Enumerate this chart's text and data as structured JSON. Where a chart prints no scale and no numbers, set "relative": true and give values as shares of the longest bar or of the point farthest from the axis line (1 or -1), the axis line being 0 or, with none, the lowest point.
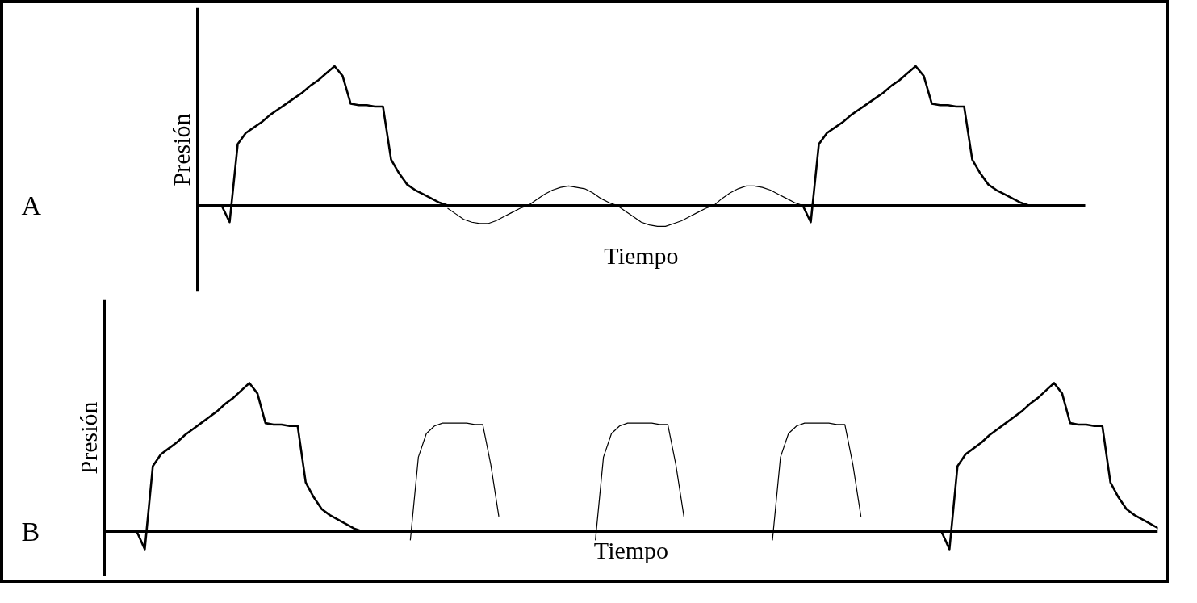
{
  "chart_data": [
    {
      "type": "line",
      "title": "A",
      "xlabel": "Tiempo",
      "ylabel": "Presión",
      "relative": true,
      "categories": [
        null,
        null,
        null,
        null,
        null,
        null,
        null,
        null,
        null,
        null,
        null,
        null,
        null,
        null,
        null,
        null,
        null,
        null,
        null,
        null,
        null,
        null,
        null,
        null,
        null,
        null,
        null,
        null,
        null,
        null,
        null,
        null,
        null,
        null,
        null,
        null,
        null,
        null,
        null,
        null,
        null,
        null,
        null,
        null,
        null,
        null,
        null,
        null,
        null,
        null,
        null,
        null,
        null,
        null,
        null,
        null,
        null,
        null,
        null,
        null,
        null,
        null,
        null,
        null,
        null,
        null,
        null,
        null,
        null,
        null,
        null,
        null,
        null,
        null,
        null,
        null,
        null,
        null,
        null,
        null,
        null,
        null,
        null,
        null,
        null,
        null,
        null,
        null,
        null,
        null,
        null,
        null,
        null,
        null,
        null,
        null,
        null,
        null,
        null,
        null,
        null,
        null,
        null,
        null,
        null,
        null,
        null,
        null,
        null,
        null,
        null
      ],
      "series": [
        {
          "color": "#000000",
          "values": [
            null,
            null,
            null,
            0,
            -0.12,
            0.44,
            0.52,
            0.56,
            0.6,
            0.65,
            0.69,
            0.73,
            0.77,
            0.81,
            0.86,
            0.9,
            0.95,
            1.0,
            0.93,
            0.73,
            0.72,
            0.72,
            0.71,
            0.71,
            0.33,
            0.23,
            0.15,
            0.11,
            0.08,
            0.05,
            0.02,
            0,
            null,
            null,
            null,
            null,
            null,
            null,
            null,
            null,
            null,
            null,
            null,
            null,
            null,
            null,
            null,
            null,
            null,
            null,
            null,
            null,
            null,
            null,
            null,
            null,
            null,
            null,
            null,
            null,
            null,
            null,
            null,
            null,
            null,
            null,
            null,
            null,
            null,
            null,
            null,
            null,
            null,
            null,
            null,
            null,
            null,
            null,
            null,
            null,
            null,
            null,
            null,
            null,
            null,
            null,
            null,
            null,
            null,
            null,
            null,
            null,
            null,
            null,
            null,
            null,
            null,
            null,
            null,
            null,
            null,
            null,
            null,
            null,
            null,
            null,
            null,
            null,
            null,
            null,
            null
          ]
        },
        {
          "color": "#000000",
          "values": [
            null,
            null,
            null,
            null,
            null,
            null,
            null,
            null,
            null,
            null,
            null,
            null,
            null,
            null,
            null,
            null,
            null,
            null,
            null,
            null,
            null,
            null,
            null,
            null,
            null,
            null,
            null,
            null,
            null,
            null,
            null,
            -0.02,
            -0.06,
            -0.1,
            -0.12,
            -0.13,
            -0.13,
            -0.11,
            -0.08,
            -0.05,
            -0.02,
            0,
            0.04,
            0.08,
            0.11,
            0.13,
            0.14,
            0.13,
            0.12,
            0.09,
            0.05,
            0.02,
            0,
            -0.04,
            -0.08,
            -0.12,
            -0.14,
            -0.15,
            -0.15,
            -0.13,
            -0.11,
            -0.08,
            -0.05,
            -0.02,
            0,
            0.05,
            0.09,
            0.12,
            0.14,
            0.14,
            0.13,
            0.11,
            0.08,
            0.05,
            0.02,
            0,
            null,
            null,
            null,
            null,
            null,
            null,
            null,
            null,
            null,
            null,
            null,
            null,
            null,
            null,
            null,
            null,
            null,
            null,
            null,
            null,
            null,
            null,
            null,
            null,
            null,
            null,
            null,
            null,
            null,
            null,
            null,
            null,
            null,
            null,
            null
          ]
        },
        {
          "color": "#000000",
          "values": [
            null,
            null,
            null,
            null,
            null,
            null,
            null,
            null,
            null,
            null,
            null,
            null,
            null,
            null,
            null,
            null,
            null,
            null,
            null,
            null,
            null,
            null,
            null,
            null,
            null,
            null,
            null,
            null,
            null,
            null,
            null,
            null,
            null,
            null,
            null,
            null,
            null,
            null,
            null,
            null,
            null,
            null,
            null,
            null,
            null,
            null,
            null,
            null,
            null,
            null,
            null,
            null,
            null,
            null,
            null,
            null,
            null,
            null,
            null,
            null,
            null,
            null,
            null,
            null,
            null,
            null,
            null,
            null,
            null,
            null,
            null,
            null,
            null,
            null,
            null,
            0,
            -0.12,
            0.44,
            0.52,
            0.56,
            0.6,
            0.65,
            0.69,
            0.73,
            0.77,
            0.81,
            0.86,
            0.9,
            0.95,
            1.0,
            0.93,
            0.73,
            0.72,
            0.72,
            0.71,
            0.71,
            0.33,
            0.23,
            0.15,
            0.11,
            0.08,
            0.05,
            0.02,
            0,
            null,
            null,
            null,
            null,
            null,
            null,
            null
          ]
        }
      ]
    },
    {
      "type": "line",
      "title": "B",
      "xlabel": "Tiempo",
      "ylabel": "Presión",
      "relative": true,
      "categories": [
        null,
        null,
        null,
        null,
        null,
        null,
        null,
        null,
        null,
        null,
        null,
        null,
        null,
        null,
        null,
        null,
        null,
        null,
        null,
        null,
        null,
        null,
        null,
        null,
        null,
        null,
        null,
        null,
        null,
        null,
        null,
        null,
        null,
        null,
        null,
        null,
        null,
        null,
        null,
        null,
        null,
        null,
        null,
        null,
        null,
        null,
        null,
        null,
        null,
        null,
        null,
        null,
        null,
        null,
        null,
        null,
        null,
        null,
        null,
        null,
        null,
        null,
        null,
        null,
        null,
        null,
        null,
        null,
        null,
        null,
        null,
        null,
        null,
        null,
        null,
        null,
        null,
        null,
        null,
        null,
        null,
        null,
        null,
        null,
        null,
        null,
        null,
        null,
        null,
        null,
        null,
        null,
        null,
        null,
        null,
        null,
        null,
        null,
        null,
        null,
        null,
        null,
        null,
        null,
        null,
        null,
        null,
        null,
        null,
        null,
        null,
        null,
        null,
        null,
        null,
        null,
        null,
        null,
        null,
        null,
        null,
        null,
        null,
        null,
        null,
        null,
        null,
        null,
        null,
        null,
        null,
        null,
        null
      ],
      "series": [
        {
          "color": "#000000",
          "values": [
            null,
            null,
            null,
            null,
            0,
            -0.12,
            0.44,
            0.52,
            0.56,
            0.6,
            0.65,
            0.69,
            0.73,
            0.77,
            0.81,
            0.86,
            0.9,
            0.95,
            1.0,
            0.93,
            0.73,
            0.72,
            0.72,
            0.71,
            0.71,
            0.33,
            0.23,
            0.15,
            0.11,
            0.08,
            0.05,
            0.02,
            0,
            null,
            null,
            null,
            null,
            null,
            null,
            null,
            null,
            null,
            null,
            null,
            null,
            null,
            null,
            null,
            null,
            null,
            null,
            null,
            null,
            null,
            null,
            null,
            null,
            null,
            null,
            null,
            null,
            null,
            null,
            null,
            null,
            null,
            null,
            null,
            null,
            null,
            null,
            null,
            null,
            null,
            null,
            null,
            null,
            null,
            null,
            null,
            null,
            null,
            null,
            null,
            null,
            null,
            null,
            null,
            null,
            null,
            null,
            null,
            null,
            null,
            null,
            null,
            null,
            null,
            null,
            null,
            null,
            null,
            null,
            null,
            null,
            null,
            null,
            null,
            null,
            null,
            null,
            null,
            null,
            null,
            null,
            null,
            null,
            null,
            null,
            null,
            null,
            null,
            null,
            null,
            null,
            null,
            null,
            null,
            null,
            null,
            null,
            null,
            null
          ]
        },
        {
          "color": "#000000",
          "values": [
            null,
            null,
            null,
            null,
            null,
            null,
            null,
            null,
            null,
            null,
            null,
            null,
            null,
            null,
            null,
            null,
            null,
            null,
            null,
            null,
            null,
            null,
            null,
            null,
            null,
            null,
            null,
            null,
            null,
            null,
            null,
            null,
            null,
            null,
            null,
            null,
            null,
            null,
            -0.06,
            0.5,
            0.66,
            0.71,
            0.73,
            0.73,
            0.73,
            0.73,
            0.72,
            0.72,
            0.45,
            0.1,
            null,
            null,
            null,
            null,
            null,
            null,
            null,
            null,
            null,
            null,
            null,
            null,
            null,
            null,
            null,
            null,
            null,
            null,
            null,
            null,
            null,
            null,
            null,
            null,
            null,
            null,
            null,
            null,
            null,
            null,
            null,
            null,
            null,
            null,
            null,
            null,
            null,
            null,
            null,
            null,
            null,
            null,
            null,
            null,
            null,
            null,
            null,
            null,
            null,
            null,
            null,
            null,
            null,
            null,
            null,
            null,
            null,
            null,
            null,
            null,
            null,
            null,
            null,
            null,
            null,
            null,
            null,
            null,
            null,
            null,
            null,
            null,
            null,
            null,
            null,
            null,
            null,
            null,
            null,
            null,
            null,
            null,
            null
          ]
        },
        {
          "color": "#000000",
          "values": [
            null,
            null,
            null,
            null,
            null,
            null,
            null,
            null,
            null,
            null,
            null,
            null,
            null,
            null,
            null,
            null,
            null,
            null,
            null,
            null,
            null,
            null,
            null,
            null,
            null,
            null,
            null,
            null,
            null,
            null,
            null,
            null,
            null,
            null,
            null,
            null,
            null,
            null,
            null,
            null,
            null,
            null,
            null,
            null,
            null,
            null,
            null,
            null,
            null,
            null,
            null,
            null,
            null,
            null,
            null,
            null,
            null,
            null,
            null,
            null,
            null,
            -0.06,
            0.5,
            0.66,
            0.71,
            0.73,
            0.73,
            0.73,
            0.73,
            0.72,
            0.72,
            0.45,
            0.1,
            null,
            null,
            null,
            null,
            null,
            null,
            null,
            null,
            null,
            null,
            null,
            null,
            null,
            null,
            null,
            null,
            null,
            null,
            null,
            null,
            null,
            null,
            null,
            null,
            null,
            null,
            null,
            null,
            null,
            null,
            null,
            null,
            null,
            null,
            null,
            null,
            null,
            null,
            null,
            null,
            null,
            null,
            null,
            null,
            null,
            null,
            null,
            null,
            null,
            null,
            null,
            null,
            null,
            null,
            null,
            null,
            null,
            null,
            null,
            null
          ]
        },
        {
          "color": "#000000",
          "values": [
            null,
            null,
            null,
            null,
            null,
            null,
            null,
            null,
            null,
            null,
            null,
            null,
            null,
            null,
            null,
            null,
            null,
            null,
            null,
            null,
            null,
            null,
            null,
            null,
            null,
            null,
            null,
            null,
            null,
            null,
            null,
            null,
            null,
            null,
            null,
            null,
            null,
            null,
            null,
            null,
            null,
            null,
            null,
            null,
            null,
            null,
            null,
            null,
            null,
            null,
            null,
            null,
            null,
            null,
            null,
            null,
            null,
            null,
            null,
            null,
            null,
            null,
            null,
            null,
            null,
            null,
            null,
            null,
            null,
            null,
            null,
            null,
            null,
            null,
            null,
            null,
            null,
            null,
            null,
            null,
            null,
            null,
            null,
            -0.06,
            0.5,
            0.66,
            0.71,
            0.73,
            0.73,
            0.73,
            0.73,
            0.72,
            0.72,
            0.45,
            0.1,
            null,
            null,
            null,
            null,
            null,
            null,
            null,
            null,
            null,
            null,
            null,
            null,
            null,
            null,
            null,
            null,
            null,
            null,
            null,
            null,
            null,
            null,
            null,
            null,
            null,
            null,
            null,
            null,
            null,
            null,
            null,
            null,
            null,
            null,
            null,
            null,
            null,
            null
          ]
        },
        {
          "color": "#000000",
          "values": [
            null,
            null,
            null,
            null,
            null,
            null,
            null,
            null,
            null,
            null,
            null,
            null,
            null,
            null,
            null,
            null,
            null,
            null,
            null,
            null,
            null,
            null,
            null,
            null,
            null,
            null,
            null,
            null,
            null,
            null,
            null,
            null,
            null,
            null,
            null,
            null,
            null,
            null,
            null,
            null,
            null,
            null,
            null,
            null,
            null,
            null,
            null,
            null,
            null,
            null,
            null,
            null,
            null,
            null,
            null,
            null,
            null,
            null,
            null,
            null,
            null,
            null,
            null,
            null,
            null,
            null,
            null,
            null,
            null,
            null,
            null,
            null,
            null,
            null,
            null,
            null,
            null,
            null,
            null,
            null,
            null,
            null,
            null,
            null,
            null,
            null,
            null,
            null,
            null,
            null,
            null,
            null,
            null,
            null,
            null,
            null,
            null,
            null,
            null,
            null,
            null,
            null,
            null,
            null,
            0,
            -0.12,
            0.44,
            0.52,
            0.56,
            0.6,
            0.65,
            0.69,
            0.73,
            0.77,
            0.81,
            0.86,
            0.9,
            0.95,
            1.0,
            0.93,
            0.73,
            0.72,
            0.72,
            0.71,
            0.71,
            0.33,
            0.23,
            0.15,
            0.11,
            0.08,
            0.05,
            0.02,
            0
          ]
        }
      ]
    }
  ]
}
